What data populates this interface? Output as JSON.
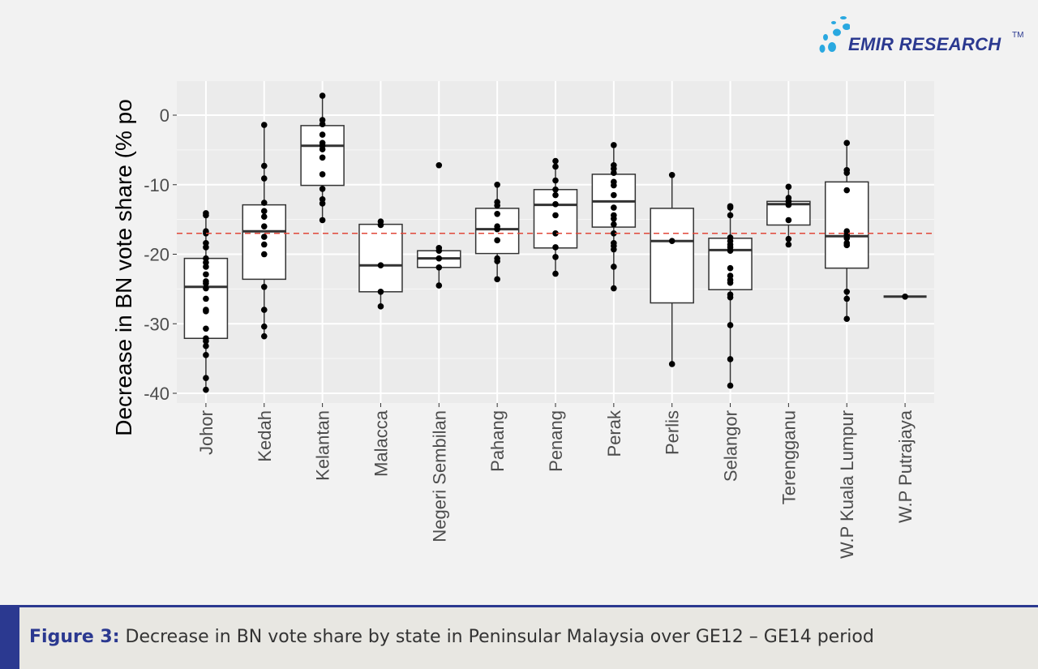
{
  "logo": {
    "text": "EMIR RESEARCH",
    "tm": "TM",
    "color": "#2b3990",
    "dot_color": "#29a8e0"
  },
  "caption": {
    "label": "Figure 3",
    "separator": ":",
    "text": " Decrease in BN vote share by state in Peninsular Malaysia over GE12 – GE14 period"
  },
  "chart_data": {
    "type": "box",
    "title": "",
    "xlabel": "",
    "ylabel": "Decrease in BN vote share (% po",
    "ylim": [
      -41.4,
      4.9
    ],
    "yticks": [
      0,
      -10,
      -20,
      -30,
      -40
    ],
    "ytick_labels": [
      "0",
      "-10",
      "-20",
      "-30",
      "-40"
    ],
    "grid": true,
    "reference_line": {
      "y": -17.0,
      "style": "dashed",
      "color": "#e0473a"
    },
    "colors": {
      "panel": "#ebebeb",
      "box_fill": "#ffffff",
      "box_stroke": "#333333",
      "point": "#000000"
    },
    "categories": [
      "Johor",
      "Kedah",
      "Kelantan",
      "Malacca",
      "Negeri Sembilan",
      "Pahang",
      "Penang",
      "Perak",
      "Perlis",
      "Selangor",
      "Terengganu",
      "W.P Kuala Lumpur",
      "W.P Putrajaya"
    ],
    "boxes": [
      {
        "lower": -39.5,
        "q1": -32.1,
        "median": -24.7,
        "q3": -20.6,
        "upper": -14.0,
        "points": [
          -14.1,
          -14.4,
          -16.7,
          -17.0,
          -18.4,
          -19.0,
          -20.6,
          -21.2,
          -21.8,
          -22.9,
          -23.9,
          -24.2,
          -24.9,
          -26.4,
          -28.0,
          -28.2,
          -30.7,
          -32.1,
          -32.5,
          -33.2,
          -34.5,
          -37.8,
          -39.5
        ]
      },
      {
        "lower": -31.8,
        "q1": -23.6,
        "median": -16.7,
        "q3": -12.9,
        "upper": -1.4,
        "points": [
          -1.4,
          -7.3,
          -9.1,
          -12.6,
          -13.8,
          -14.6,
          -16.0,
          -17.5,
          -18.6,
          -20.0,
          -24.7,
          -28.0,
          -30.4,
          -31.8
        ]
      },
      {
        "lower": -15.1,
        "q1": -10.1,
        "median": -4.4,
        "q3": -1.5,
        "upper": 2.8,
        "points": [
          2.8,
          -0.7,
          -1.3,
          -2.8,
          -4.0,
          -4.4,
          -4.9,
          -6.1,
          -8.5,
          -10.6,
          -12.1,
          -12.7,
          -15.1
        ]
      },
      {
        "lower": -27.5,
        "q1": -25.4,
        "median": -21.6,
        "q3": -15.7,
        "upper": -15.3,
        "points": [
          -15.3,
          -15.8,
          -21.6,
          -25.4,
          -27.5
        ]
      },
      {
        "lower": -24.5,
        "q1": -21.9,
        "median": -20.6,
        "q3": -19.5,
        "upper": -19.1,
        "points": [
          -7.2,
          -19.1,
          -19.5,
          -20.6,
          -21.9,
          -24.5
        ]
      },
      {
        "lower": -23.6,
        "q1": -19.9,
        "median": -16.4,
        "q3": -13.4,
        "upper": -10.0,
        "points": [
          -10.0,
          -12.5,
          -13.0,
          -14.2,
          -16.0,
          -16.4,
          -18.0,
          -20.6,
          -21.0,
          -23.6
        ]
      },
      {
        "lower": -22.8,
        "q1": -19.1,
        "median": -12.9,
        "q3": -10.7,
        "upper": -6.6,
        "points": [
          -6.6,
          -7.4,
          -9.4,
          -10.7,
          -11.5,
          -12.8,
          -14.4,
          -17.0,
          -19.0,
          -20.4,
          -22.8
        ]
      },
      {
        "lower": -24.9,
        "q1": -16.1,
        "median": -12.4,
        "q3": -8.5,
        "upper": -4.3,
        "points": [
          -4.3,
          -7.2,
          -7.7,
          -8.3,
          -9.6,
          -10.1,
          -11.5,
          -13.3,
          -14.4,
          -14.9,
          -15.7,
          -17.0,
          -18.4,
          -18.8,
          -19.3,
          -21.8,
          -24.9
        ]
      },
      {
        "lower": -35.8,
        "q1": -27.0,
        "median": -18.1,
        "q3": -13.4,
        "upper": -8.6,
        "points": [
          -8.6,
          -18.1,
          -35.8
        ]
      },
      {
        "lower": -38.9,
        "q1": -25.1,
        "median": -19.4,
        "q3": -17.7,
        "upper": -13.1,
        "points": [
          -13.1,
          -13.3,
          -14.4,
          -17.6,
          -18.1,
          -18.6,
          -19.0,
          -19.5,
          -22.0,
          -23.1,
          -23.7,
          -24.1,
          -25.8,
          -26.2,
          -30.2,
          -35.1,
          -38.9
        ]
      },
      {
        "lower": -18.6,
        "q1": -15.8,
        "median": -12.8,
        "q3": -12.4,
        "upper": -10.3,
        "points": [
          -10.3,
          -11.9,
          -12.4,
          -12.9,
          -15.1,
          -17.8,
          -18.6
        ]
      },
      {
        "lower": -29.3,
        "q1": -22.0,
        "median": -17.4,
        "q3": -9.6,
        "upper": -4.0,
        "points": [
          -4.0,
          -7.9,
          -8.3,
          -10.8,
          -16.7,
          -17.2,
          -17.7,
          -18.4,
          -18.7,
          -25.4,
          -26.4,
          -29.3
        ]
      },
      {
        "lower": -26.1,
        "q1": -26.1,
        "median": -26.1,
        "q3": -26.1,
        "upper": -26.1,
        "points": [
          -26.1
        ]
      }
    ]
  }
}
